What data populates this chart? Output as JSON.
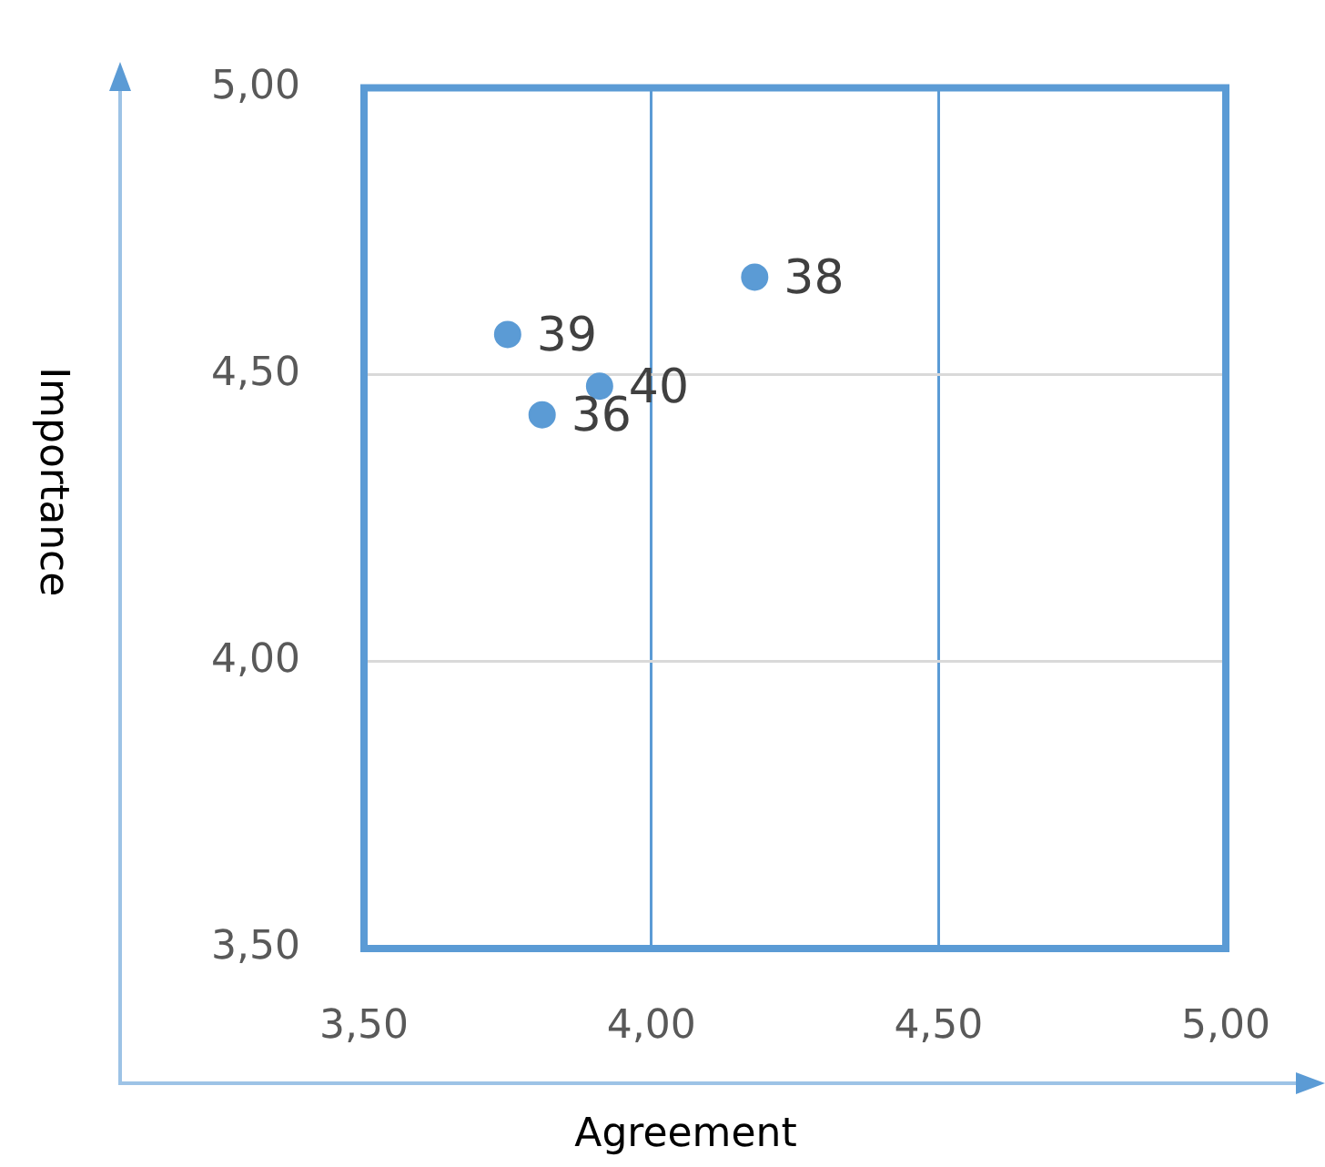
{
  "chart_data": {
    "type": "scatter",
    "xlabel": "Agreement",
    "ylabel": "Importance",
    "series": [
      {
        "color": "#5b9bd5",
        "x": [
          3.75,
          3.91,
          3.81,
          4.18
        ],
        "values": [
          4.57,
          4.48,
          4.43,
          4.67
        ]
      }
    ],
    "annotations": [
      {
        "text": "39",
        "x": 3.75,
        "y": 4.57
      },
      {
        "text": "40",
        "x": 3.91,
        "y": 4.48
      },
      {
        "text": "36",
        "x": 3.81,
        "y": 4.43
      },
      {
        "text": "38",
        "x": 4.18,
        "y": 4.67
      }
    ],
    "xlim": [
      3.5,
      5
    ],
    "ylim": [
      3.5,
      5
    ],
    "xticks": [
      {
        "value": 3.5,
        "label": "3,50"
      },
      {
        "value": 4,
        "label": "4,00"
      },
      {
        "value": 4.5,
        "label": "4,50"
      },
      {
        "value": 5,
        "label": "5,00"
      }
    ],
    "yticks": [
      {
        "value": 3.5,
        "label": "3,50"
      },
      {
        "value": 4,
        "label": "4,00"
      },
      {
        "value": 4.5,
        "label": "4,50"
      },
      {
        "value": 5,
        "label": "5,00"
      }
    ],
    "grid": true,
    "legend": false,
    "marker": "circle"
  }
}
